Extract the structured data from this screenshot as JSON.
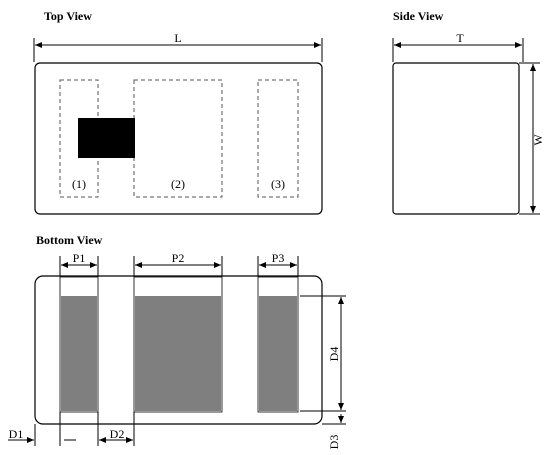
{
  "titles": {
    "top": "Top View",
    "side": "Side View",
    "bottom": "Bottom View"
  },
  "dimensions": {
    "L": "L",
    "T": "T",
    "W": "W",
    "P1": "P1",
    "P2": "P2",
    "P3": "P3",
    "D1": "D1",
    "D2": "D2",
    "D3": "D3",
    "D4": "D4"
  },
  "pins": [
    "(1)",
    "(2)",
    "(3)"
  ],
  "colors": {
    "outline": "#000000",
    "pad": "#7f7f7f",
    "marker": "#000000"
  }
}
